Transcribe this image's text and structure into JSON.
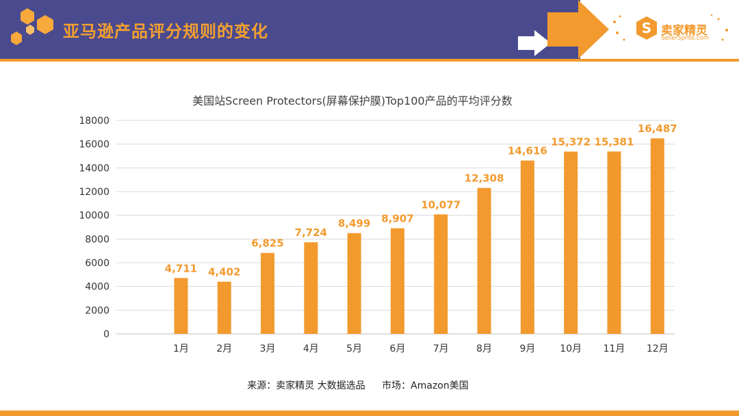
{
  "header": {
    "title": "亚马逊产品评分规则的变化"
  },
  "logo": {
    "name": "卖家精灵",
    "url": "SellerSprite.com"
  },
  "colors": {
    "header_bg": "#4A4A8E",
    "accent": "#F29A2E",
    "bar": "#F29A2E"
  },
  "chart_data": {
    "type": "bar",
    "title": "美国站Screen Protectors(屏幕保护膜)Top100产品的平均评分数",
    "categories": [
      "1月",
      "2月",
      "3月",
      "4月",
      "5月",
      "6月",
      "7月",
      "8月",
      "9月",
      "10月",
      "11月",
      "12月"
    ],
    "values": [
      4711,
      4402,
      6825,
      7724,
      8499,
      8907,
      10077,
      12308,
      14616,
      15372,
      15381,
      16487
    ],
    "value_labels": [
      "4,711",
      "4,402",
      "6,825",
      "7,724",
      "8,499",
      "8,907",
      "10,077",
      "12,308",
      "14,616",
      "15,372",
      "15,381",
      "16,487"
    ],
    "yticks": [
      "0",
      "2000",
      "4000",
      "6000",
      "8000",
      "10000",
      "12000",
      "14000",
      "16000",
      "18000"
    ],
    "ylim": [
      0,
      18000
    ],
    "grid": true,
    "xlabel": "",
    "ylabel": ""
  },
  "footer": {
    "source": "来源：卖家精灵 大数据选品",
    "market": "市场：Amazon美国"
  }
}
